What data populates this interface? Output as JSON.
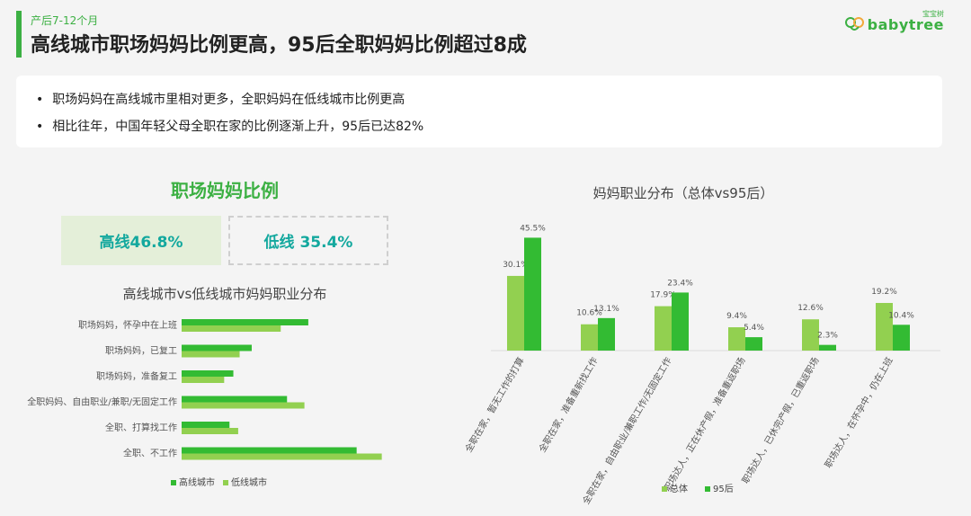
{
  "header": {
    "subtitle": "产后7-12个月",
    "title": "高线城市职场妈妈比例更高，95后全职妈妈比例超过8成",
    "logo_small": "宝宝树",
    "logo_text": "babytree"
  },
  "bullets": [
    "职场妈妈在高线城市里相对更多，全职妈妈在低线城市比例更高",
    "相比往年，中国年轻父母全职在家的比例逐渐上升，95后已达82%"
  ],
  "left_panel": {
    "title": "职场妈妈比例",
    "high_label": "高线46.8%",
    "low_label": "低线 35.4%"
  },
  "colors": {
    "accent": "#3cb043",
    "dark_green": "#33bb33",
    "light_green": "#92d050",
    "teal": "#13a89e"
  },
  "chart_data": [
    {
      "type": "bar",
      "orientation": "horizontal",
      "title": "高线城市vs低线城市妈妈职业分布",
      "categories": [
        "职场妈妈，怀孕中在上班",
        "职场妈妈，已复工",
        "职场妈妈，准备复工",
        "全职妈妈、自由职业/兼职/无固定工作",
        "全职、打算找工作",
        "全职、不工作"
      ],
      "series": [
        {
          "name": "高线城市",
          "values": [
            26.2,
            14.5,
            10.7,
            21.8,
            9.9,
            36.2
          ]
        },
        {
          "name": "低线城市",
          "values": [
            20.5,
            12.0,
            8.8,
            25.4,
            11.7,
            41.4
          ]
        }
      ],
      "xlim": [
        0,
        45
      ]
    },
    {
      "type": "bar",
      "title": "妈妈职业分布（总体vs95后）",
      "categories": [
        "全职在家，暂无工作的打算",
        "全职在家，准备重新找工作",
        "全职在家，自由职业/兼职工作/无固定工作",
        "职场达人，正在休产假，准备重返职场",
        "职场达人，已休完产假，已重返职场",
        "职场达人，在怀孕中，仍在上班"
      ],
      "series": [
        {
          "name": "总体",
          "values": [
            30.1,
            10.6,
            17.9,
            9.4,
            12.6,
            19.2
          ],
          "labels": [
            "30.1%",
            "10.6%",
            "17.9%",
            "9.4%",
            "12.6%",
            "19.2%"
          ]
        },
        {
          "name": "95后",
          "values": [
            45.5,
            13.1,
            23.4,
            5.4,
            2.3,
            10.4
          ],
          "labels": [
            "45.5%",
            "13.1%",
            "23.4%",
            "5.4%",
            "2.3%",
            "10.4%"
          ]
        }
      ],
      "ylim": [
        0,
        50
      ]
    }
  ]
}
